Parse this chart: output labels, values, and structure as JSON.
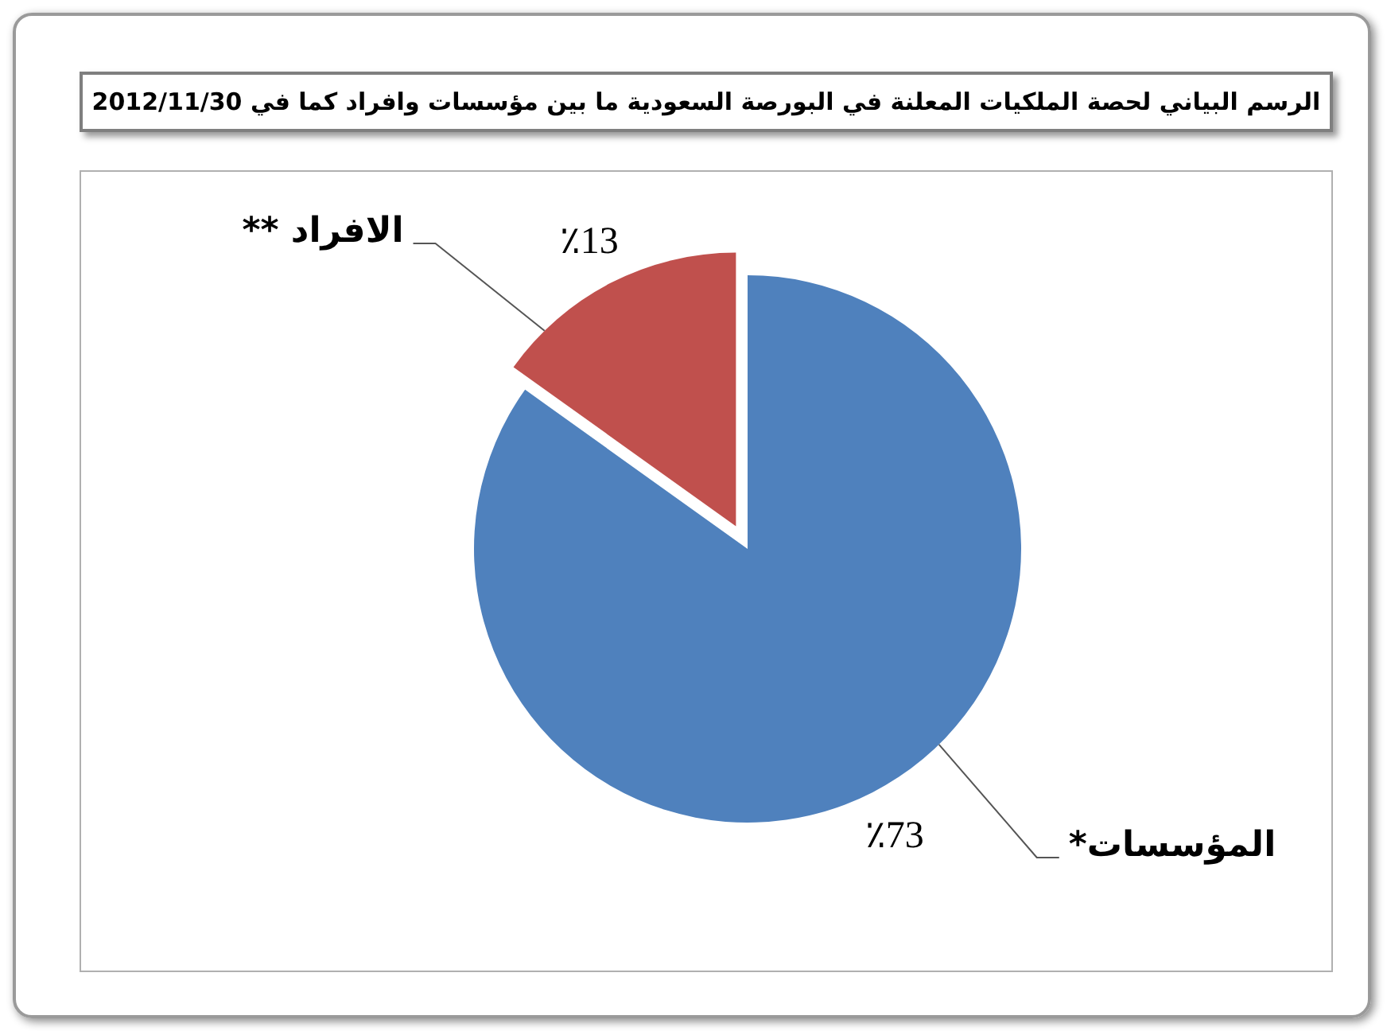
{
  "chart_data": {
    "type": "pie",
    "title": "الرسم البياني لحصة الملكيات المعلنة في البورصة السعودية ما بين مؤسسات وافراد كما في 2012/11/30",
    "categories": [
      "المؤسسات*",
      "الافراد **"
    ],
    "values": [
      73,
      13
    ],
    "colors": [
      "#4f81bd",
      "#c0504d"
    ],
    "value_labels": [
      "٪73",
      "٪13"
    ]
  }
}
